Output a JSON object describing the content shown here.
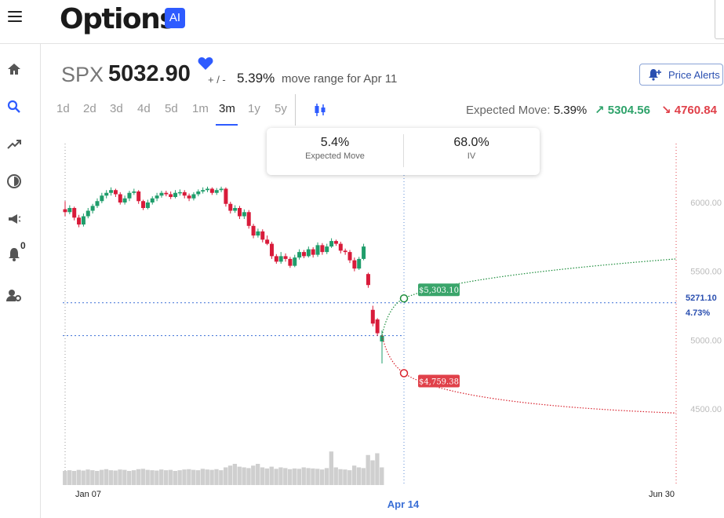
{
  "app": {
    "logo_text": "Options",
    "ai_badge": "AI"
  },
  "header": {
    "symbol": "SPX",
    "price": "5032.90",
    "plus_minus": "+ / -",
    "move_pct": "5.39%",
    "move_range_text": "move range for Apr 11",
    "price_alerts_label": "Price Alerts"
  },
  "ranges": [
    "1d",
    "2d",
    "3d",
    "4d",
    "5d",
    "1m",
    "3m",
    "1y",
    "5y"
  ],
  "active_range": "3m",
  "expected_move": {
    "label": "Expected Move:",
    "value": "5.39%",
    "up_arrow": "↗",
    "up_value": "5304.56",
    "down_arrow": "↘",
    "down_value": "4760.84"
  },
  "card": {
    "expected_move_value": "5.4%",
    "expected_move_label": "Expected Move",
    "iv_value": "68.0%",
    "iv_label": "IV"
  },
  "sidebar": {
    "items": [
      "home-icon",
      "search-icon",
      "trending-icon",
      "pie-icon",
      "megaphone-icon",
      "bell-icon",
      "user-settings-icon"
    ],
    "bell_count": "0"
  },
  "colors": {
    "accent": "#2e5bff",
    "up": "#2fa36b",
    "down": "#e0414a",
    "candle_up": "#1f9d6b",
    "candle_down": "#d81b3a"
  },
  "chart_data": {
    "type": "candlestick",
    "x_labels": [
      "Jan 07",
      "Apr 14",
      "Jun 30"
    ],
    "y_ticks": [
      "6000.00",
      "5500.00",
      "5000.00",
      "4500.00"
    ],
    "ylim": [
      4000,
      6500
    ],
    "current_price_line": 5032.9,
    "reference_line": {
      "value": "5271.10",
      "pct": "4.73%"
    },
    "projection_upper": {
      "start_label": "$5,303.10",
      "start_value": 5303.1,
      "end_value": 5590
    },
    "projection_lower": {
      "start_label": "$4,759.38",
      "start_value": 4759.38,
      "end_value": 4470
    },
    "candles": [
      [
        5951,
        5930,
        6010,
        5900
      ],
      [
        5930,
        5960,
        5980,
        5915
      ],
      [
        5960,
        5890,
        5970,
        5870
      ],
      [
        5890,
        5840,
        5910,
        5820
      ],
      [
        5840,
        5900,
        5920,
        5825
      ],
      [
        5900,
        5940,
        5960,
        5885
      ],
      [
        5940,
        5975,
        5990,
        5920
      ],
      [
        5975,
        6010,
        6030,
        5960
      ],
      [
        6010,
        6050,
        6070,
        5995
      ],
      [
        6050,
        6070,
        6090,
        6030
      ],
      [
        6070,
        6090,
        6110,
        6050
      ],
      [
        6090,
        6060,
        6100,
        6040
      ],
      [
        6060,
        6000,
        6075,
        5985
      ],
      [
        6000,
        6030,
        6050,
        5985
      ],
      [
        6030,
        6070,
        6085,
        6010
      ],
      [
        6070,
        6080,
        6100,
        6055
      ],
      [
        6080,
        6010,
        6090,
        5990
      ],
      [
        6010,
        5960,
        6020,
        5945
      ],
      [
        5960,
        6000,
        6020,
        5950
      ],
      [
        6000,
        6030,
        6045,
        5985
      ],
      [
        6030,
        6050,
        6070,
        6010
      ],
      [
        6050,
        6070,
        6085,
        6035
      ],
      [
        6070,
        6060,
        6085,
        6045
      ],
      [
        6060,
        6040,
        6080,
        6025
      ],
      [
        6040,
        6070,
        6090,
        6030
      ],
      [
        6070,
        6075,
        6095,
        6050
      ],
      [
        6075,
        6050,
        6090,
        6030
      ],
      [
        6050,
        6030,
        6065,
        6010
      ],
      [
        6030,
        6060,
        6075,
        6015
      ],
      [
        6060,
        6080,
        6095,
        6045
      ],
      [
        6080,
        6090,
        6110,
        6065
      ],
      [
        6090,
        6100,
        6115,
        6075
      ],
      [
        6100,
        6070,
        6110,
        6055
      ],
      [
        6070,
        6090,
        6105,
        6055
      ],
      [
        6090,
        6100,
        6115,
        6075
      ],
      [
        6100,
        5990,
        6110,
        5970
      ],
      [
        5990,
        5940,
        6005,
        5920
      ],
      [
        5940,
        5960,
        5980,
        5925
      ],
      [
        5960,
        5900,
        5975,
        5880
      ],
      [
        5900,
        5930,
        5950,
        5880
      ],
      [
        5930,
        5830,
        5945,
        5810
      ],
      [
        5830,
        5760,
        5845,
        5740
      ],
      [
        5760,
        5790,
        5810,
        5745
      ],
      [
        5790,
        5730,
        5805,
        5710
      ],
      [
        5730,
        5700,
        5760,
        5690
      ],
      [
        5700,
        5610,
        5715,
        5590
      ],
      [
        5610,
        5570,
        5625,
        5555
      ],
      [
        5570,
        5610,
        5640,
        5555
      ],
      [
        5610,
        5590,
        5630,
        5570
      ],
      [
        5590,
        5540,
        5605,
        5525
      ],
      [
        5540,
        5600,
        5620,
        5530
      ],
      [
        5600,
        5640,
        5660,
        5585
      ],
      [
        5640,
        5610,
        5655,
        5595
      ],
      [
        5610,
        5660,
        5680,
        5600
      ],
      [
        5660,
        5620,
        5675,
        5600
      ],
      [
        5620,
        5690,
        5710,
        5605
      ],
      [
        5690,
        5640,
        5705,
        5620
      ],
      [
        5640,
        5680,
        5700,
        5625
      ],
      [
        5680,
        5720,
        5740,
        5670
      ],
      [
        5720,
        5700,
        5730,
        5685
      ],
      [
        5700,
        5650,
        5715,
        5630
      ],
      [
        5650,
        5640,
        5665,
        5620
      ],
      [
        5640,
        5580,
        5655,
        5560
      ],
      [
        5580,
        5520,
        5600,
        5500
      ],
      [
        5520,
        5590,
        5605,
        5510
      ],
      [
        5590,
        5680,
        5700,
        5580
      ],
      [
        5480,
        5400,
        5490,
        5380
      ],
      [
        5220,
        5120,
        5250,
        5100
      ],
      [
        5150,
        5050,
        5160,
        5030
      ],
      [
        4990,
        5032.9,
        5070,
        4830
      ]
    ],
    "volume": [
      0.4,
      0.42,
      0.4,
      0.43,
      0.41,
      0.44,
      0.42,
      0.4,
      0.43,
      0.45,
      0.42,
      0.41,
      0.44,
      0.43,
      0.4,
      0.42,
      0.45,
      0.46,
      0.43,
      0.42,
      0.41,
      0.44,
      0.42,
      0.43,
      0.4,
      0.42,
      0.44,
      0.45,
      0.43,
      0.42,
      0.46,
      0.44,
      0.43,
      0.45,
      0.42,
      0.5,
      0.55,
      0.6,
      0.52,
      0.5,
      0.48,
      0.55,
      0.6,
      0.5,
      0.47,
      0.52,
      0.46,
      0.5,
      0.48,
      0.45,
      0.47,
      0.46,
      0.5,
      0.48,
      0.47,
      0.46,
      0.44,
      0.48,
      0.95,
      0.5,
      0.45,
      0.44,
      0.42,
      0.55,
      0.5,
      0.48,
      0.85,
      0.7,
      0.9,
      0.5
    ]
  }
}
